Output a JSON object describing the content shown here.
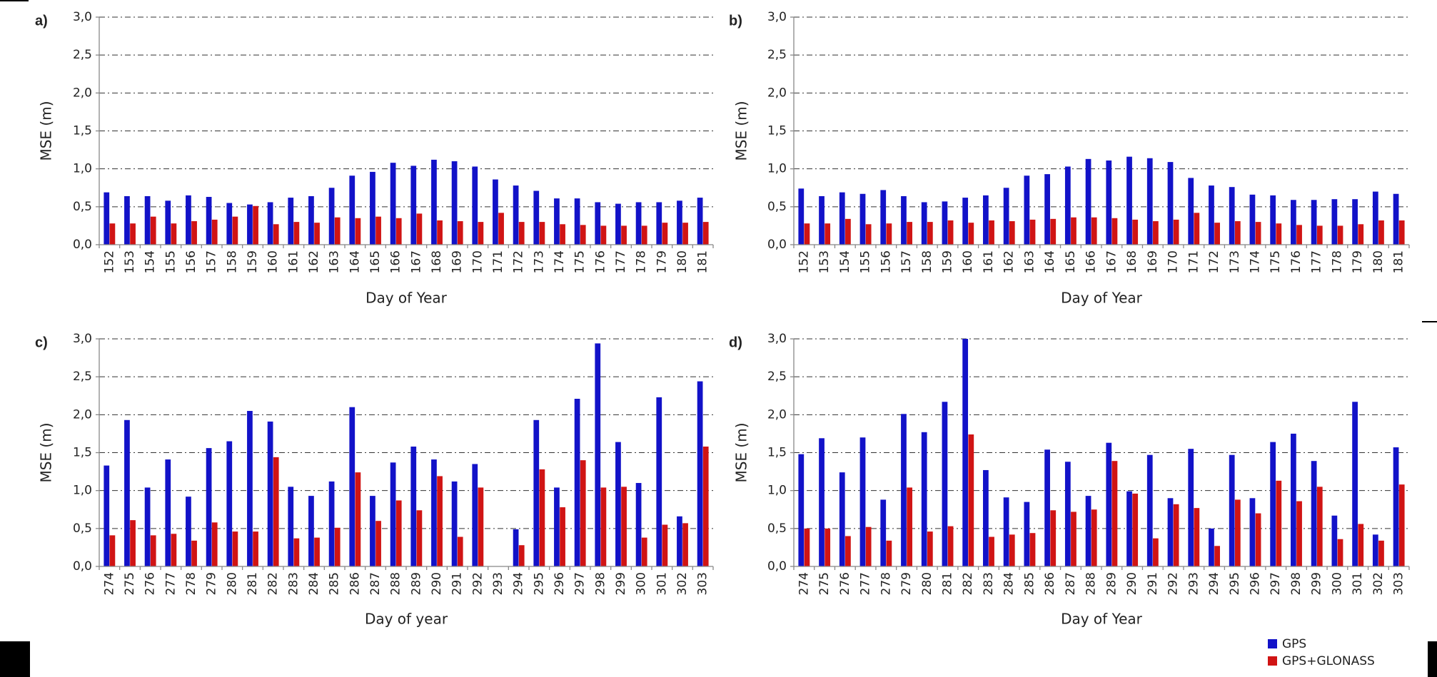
{
  "chart_data": [
    {
      "type": "bar",
      "label": "a)",
      "xlabel": "Day of Year",
      "ylabel": "MSE (m)",
      "categories": [
        152,
        153,
        154,
        155,
        156,
        157,
        158,
        159,
        160,
        161,
        162,
        163,
        164,
        165,
        166,
        167,
        168,
        169,
        170,
        171,
        172,
        173,
        174,
        175,
        176,
        177,
        178,
        179,
        180,
        181
      ],
      "series": [
        {
          "name": "GPS",
          "color": "#1212c8",
          "values": [
            0.69,
            0.64,
            0.64,
            0.58,
            0.65,
            0.63,
            0.55,
            0.53,
            0.56,
            0.62,
            0.64,
            0.75,
            0.91,
            0.96,
            1.08,
            1.04,
            1.12,
            1.1,
            1.03,
            0.86,
            0.78,
            0.71,
            0.61,
            0.61,
            0.56,
            0.54,
            0.56,
            0.56,
            0.58,
            0.62
          ]
        },
        {
          "name": "GPS+GLONASS",
          "color": "#d01414",
          "values": [
            0.28,
            0.28,
            0.37,
            0.28,
            0.31,
            0.33,
            0.37,
            0.51,
            0.27,
            0.3,
            0.29,
            0.36,
            0.35,
            0.37,
            0.35,
            0.41,
            0.32,
            0.31,
            0.3,
            0.42,
            0.3,
            0.3,
            0.27,
            0.26,
            0.25,
            0.25,
            0.25,
            0.29,
            0.29,
            0.3
          ]
        }
      ],
      "ylim": [
        0,
        3
      ],
      "yticks": [
        {
          "value": 0,
          "label": "0,0"
        },
        {
          "value": 0.5,
          "label": "0,5"
        },
        {
          "value": 1,
          "label": "1,0"
        },
        {
          "value": 1.5,
          "label": "1,5"
        },
        {
          "value": 2,
          "label": "2,0"
        },
        {
          "value": 2.5,
          "label": "2,5"
        },
        {
          "value": 3,
          "label": "3,0"
        }
      ],
      "grid": true
    },
    {
      "type": "bar",
      "label": "b)",
      "xlabel": "Day of Year",
      "ylabel": "MSE (m)",
      "categories": [
        152,
        153,
        154,
        155,
        156,
        157,
        158,
        159,
        160,
        161,
        162,
        163,
        164,
        165,
        166,
        167,
        168,
        169,
        170,
        171,
        172,
        173,
        174,
        175,
        176,
        177,
        178,
        179,
        180,
        181
      ],
      "series": [
        {
          "name": "GPS",
          "color": "#1212c8",
          "values": [
            0.74,
            0.64,
            0.69,
            0.67,
            0.72,
            0.64,
            0.56,
            0.57,
            0.62,
            0.65,
            0.75,
            0.91,
            0.93,
            1.03,
            1.13,
            1.11,
            1.16,
            1.14,
            1.09,
            0.88,
            0.78,
            0.76,
            0.66,
            0.65,
            0.59,
            0.59,
            0.6,
            0.6,
            0.7,
            0.67
          ]
        },
        {
          "name": "GPS+GLONASS",
          "color": "#d01414",
          "values": [
            0.28,
            0.28,
            0.34,
            0.27,
            0.28,
            0.3,
            0.3,
            0.32,
            0.29,
            0.32,
            0.31,
            0.33,
            0.34,
            0.36,
            0.36,
            0.35,
            0.33,
            0.31,
            0.33,
            0.42,
            0.29,
            0.31,
            0.3,
            0.28,
            0.26,
            0.25,
            0.25,
            0.27,
            0.32,
            0.32
          ]
        }
      ],
      "ylim": [
        0,
        3
      ],
      "yticks": [
        {
          "value": 0,
          "label": "0,0"
        },
        {
          "value": 0.5,
          "label": "0,5"
        },
        {
          "value": 1,
          "label": "1,0"
        },
        {
          "value": 1.5,
          "label": "1,5"
        },
        {
          "value": 2,
          "label": "2,0"
        },
        {
          "value": 2.5,
          "label": "2,5"
        },
        {
          "value": 3,
          "label": "3,0"
        }
      ],
      "grid": true
    },
    {
      "type": "bar",
      "label": "c)",
      "xlabel": "Day of year",
      "ylabel": "MSE (m)",
      "categories": [
        274,
        275,
        276,
        277,
        278,
        279,
        280,
        281,
        282,
        283,
        284,
        285,
        286,
        287,
        288,
        289,
        290,
        291,
        292,
        293,
        294,
        295,
        296,
        297,
        298,
        299,
        300,
        301,
        302,
        303
      ],
      "series": [
        {
          "name": "GPS",
          "color": "#1212c8",
          "values": [
            1.33,
            1.93,
            1.04,
            1.41,
            0.92,
            1.56,
            1.65,
            2.05,
            1.91,
            1.05,
            0.93,
            1.12,
            2.1,
            0.93,
            1.37,
            1.58,
            1.41,
            1.12,
            1.35,
            null,
            0.49,
            1.93,
            1.04,
            2.21,
            2.94,
            1.64,
            1.1,
            2.23,
            0.66,
            2.44
          ]
        },
        {
          "name": "GPS+GLONASS",
          "color": "#d01414",
          "values": [
            0.41,
            0.61,
            0.41,
            0.43,
            0.34,
            0.58,
            0.46,
            0.46,
            1.44,
            0.37,
            0.38,
            0.51,
            1.24,
            0.6,
            0.87,
            0.74,
            1.19,
            0.39,
            1.04,
            null,
            0.28,
            1.28,
            0.78,
            1.4,
            1.04,
            1.05,
            0.38,
            0.55,
            0.57,
            1.58
          ]
        }
      ],
      "ylim": [
        0,
        3
      ],
      "yticks": [
        {
          "value": 0,
          "label": "0,0"
        },
        {
          "value": 0.5,
          "label": "0,5"
        },
        {
          "value": 1,
          "label": "1,0"
        },
        {
          "value": 1.5,
          "label": "1,5"
        },
        {
          "value": 2,
          "label": "2,0"
        },
        {
          "value": 2.5,
          "label": "2,5"
        },
        {
          "value": 3,
          "label": "3,0"
        }
      ],
      "grid": true
    },
    {
      "type": "bar",
      "label": "d)",
      "xlabel": "Day of Year",
      "ylabel": "MSE (m)",
      "categories": [
        274,
        275,
        276,
        277,
        278,
        279,
        280,
        281,
        282,
        283,
        284,
        285,
        286,
        287,
        288,
        289,
        290,
        291,
        292,
        293,
        294,
        295,
        296,
        297,
        298,
        299,
        300,
        301,
        302,
        303
      ],
      "series": [
        {
          "name": "GPS",
          "color": "#1212c8",
          "values": [
            1.48,
            1.69,
            1.24,
            1.7,
            0.88,
            2.01,
            1.77,
            2.17,
            3.0,
            1.27,
            0.91,
            0.85,
            1.54,
            1.38,
            0.93,
            1.63,
            0.99,
            1.47,
            0.9,
            1.55,
            0.5,
            1.47,
            0.9,
            1.64,
            1.75,
            1.39,
            0.67,
            2.17,
            0.42,
            1.57
          ]
        },
        {
          "name": "GPS+GLONASS",
          "color": "#d01414",
          "values": [
            0.5,
            0.5,
            0.4,
            0.52,
            0.34,
            1.04,
            0.46,
            0.53,
            1.74,
            0.39,
            0.42,
            0.44,
            0.74,
            0.72,
            0.75,
            1.39,
            0.96,
            0.37,
            0.82,
            0.77,
            0.27,
            0.88,
            0.7,
            1.13,
            0.86,
            1.05,
            0.36,
            0.56,
            0.34,
            1.08
          ]
        }
      ],
      "ylim": [
        0,
        3
      ],
      "yticks": [
        {
          "value": 0,
          "label": "0,0"
        },
        {
          "value": 0.5,
          "label": "0,5"
        },
        {
          "value": 1,
          "label": "1,0"
        },
        {
          "value": 1.5,
          "label": "1,5"
        },
        {
          "value": 2,
          "label": "2,0"
        },
        {
          "value": 2.5,
          "label": "2,5"
        },
        {
          "value": 3,
          "label": "3,0"
        }
      ],
      "grid": true
    }
  ]
}
